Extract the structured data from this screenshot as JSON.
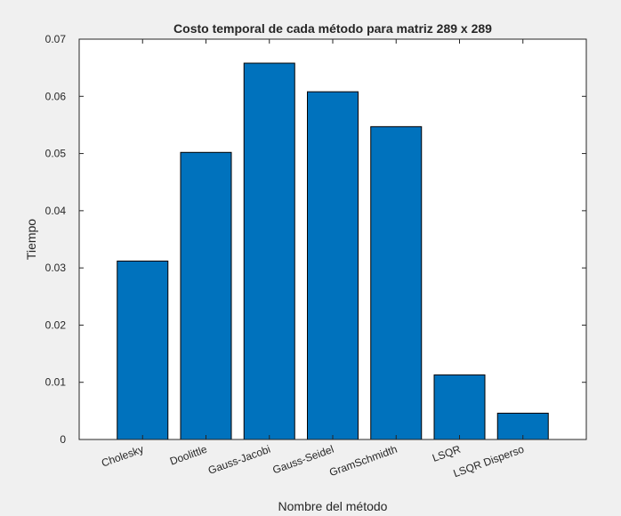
{
  "chart_data": {
    "type": "bar",
    "title": "Costo temporal de cada método para matriz 289 x 289",
    "xlabel": "Nombre del método",
    "ylabel": "Tiempo",
    "categories": [
      "Cholesky",
      "Doolittle",
      "Gauss-Jacobi",
      "Gauss-Seidel",
      "GramSchmidth",
      "LSQR",
      "LSQR Disperso"
    ],
    "values": [
      0.0312,
      0.0502,
      0.0658,
      0.0608,
      0.0547,
      0.0113,
      0.0046
    ],
    "ylim": [
      0,
      0.07
    ],
    "yticks": [
      "0",
      "0.01",
      "0.02",
      "0.03",
      "0.04",
      "0.05",
      "0.06",
      "0.07"
    ],
    "bar_color": "#0072BD",
    "grid": false
  }
}
